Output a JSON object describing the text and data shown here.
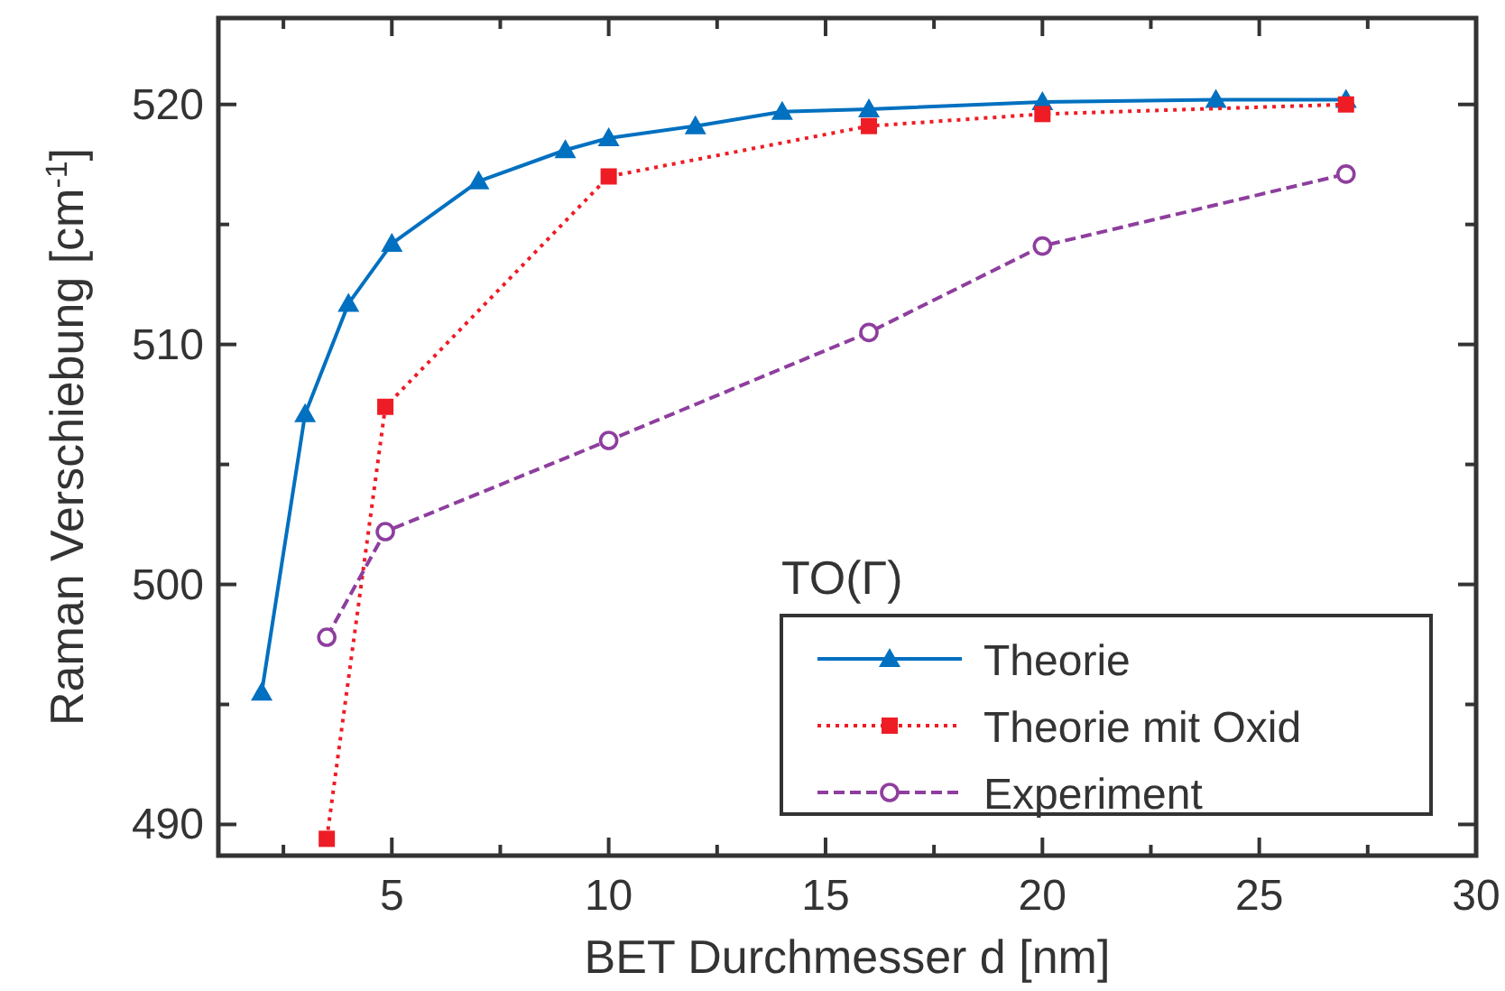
{
  "chart_data": {
    "type": "line",
    "xlabel": "BET Durchmesser d  [nm]",
    "ylabel": "Raman Verschiebung [cm$^{-1}$]",
    "legend_title": "TO(Γ)",
    "legend": "bottom right",
    "grid": false,
    "xlim": [
      1,
      30
    ],
    "xticks": [
      {
        "value": 2.5,
        "label": null
      },
      5,
      {
        "value": 7.5,
        "label": null
      },
      10,
      {
        "value": 12.5,
        "label": null
      },
      15,
      {
        "value": 17.5,
        "label": null
      },
      20,
      {
        "value": 22.5,
        "label": null
      },
      25,
      {
        "value": 27.5,
        "label": null
      },
      30
    ],
    "ylim": [
      488.7,
      523.6
    ],
    "yticks": [
      490,
      {
        "value": 495,
        "label": null
      },
      500,
      {
        "value": 505,
        "label": null
      },
      510,
      {
        "value": 515,
        "label": null
      },
      520
    ],
    "series": [
      {
        "name": "Theorie",
        "color": "#0070c0",
        "marker": "triangle",
        "line_style": "solid",
        "x": [
          2,
          3,
          4,
          5,
          7,
          9,
          10,
          12,
          14,
          16,
          20,
          24,
          27
        ],
        "values": [
          495.5,
          507.1,
          511.7,
          514.2,
          516.8,
          518.1,
          518.6,
          519.1,
          519.7,
          519.8,
          520.1,
          520.2,
          520.2
        ]
      },
      {
        "name": "Theorie mit Oxid",
        "color": "#ee1c25",
        "marker": "square",
        "line_style": "dotted",
        "x": [
          3.5,
          4.85,
          10,
          16,
          20,
          27
        ],
        "values": [
          489.4,
          507.4,
          517.0,
          519.1,
          519.6,
          520.0
        ]
      },
      {
        "name": "Experiment",
        "color": "#8e3e9e",
        "marker": "circle",
        "line_style": "dashed",
        "x": [
          3.5,
          4.85,
          10,
          16,
          20,
          27
        ],
        "values": [
          497.8,
          502.2,
          506.0,
          510.5,
          514.1,
          517.1
        ]
      }
    ]
  }
}
